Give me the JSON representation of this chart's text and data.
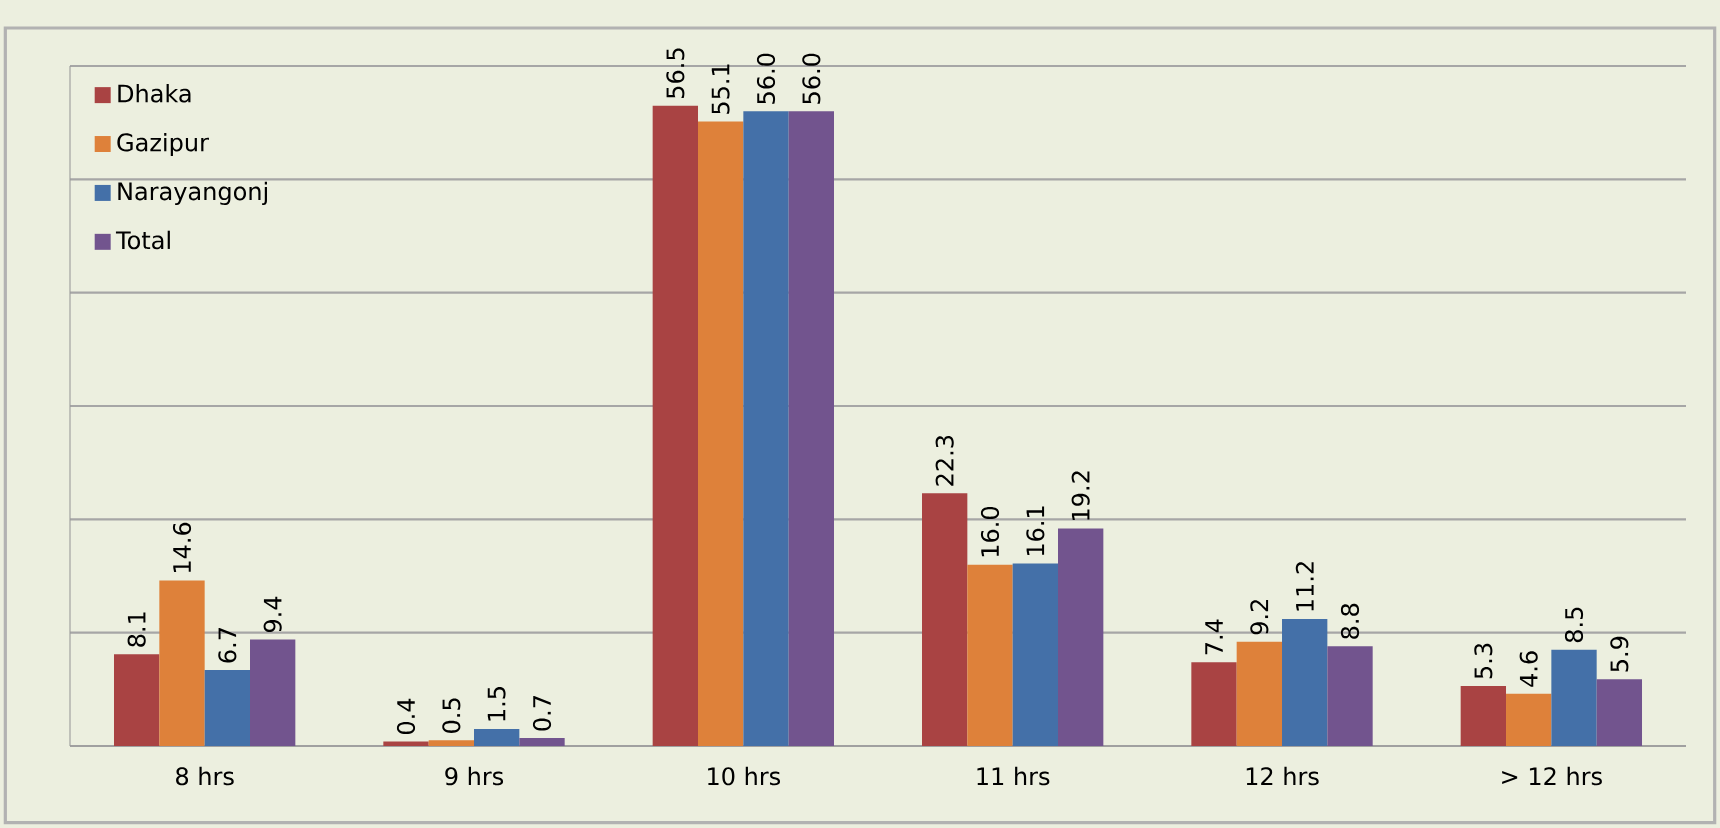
{
  "chart_data": {
    "type": "bar",
    "categories": [
      "8 hrs",
      "9 hrs",
      "10 hrs",
      "11 hrs",
      "12 hrs",
      "> 12 hrs"
    ],
    "series": [
      {
        "name": "Dhaka",
        "color": "#a94343",
        "values": [
          8.1,
          0.4,
          56.5,
          22.3,
          7.4,
          5.3
        ],
        "value_labels": [
          "8.1",
          "0.4",
          "56.5",
          "22.3",
          "7.4",
          "5.3"
        ]
      },
      {
        "name": "Gazipur",
        "color": "#de813a",
        "values": [
          14.6,
          0.5,
          55.1,
          16.0,
          9.2,
          4.6
        ],
        "value_labels": [
          "14.6",
          "0.5",
          "55.1",
          "16.0",
          "9.2",
          "4.6"
        ]
      },
      {
        "name": "Narayangonj",
        "color": "#4470a8",
        "values": [
          6.7,
          1.5,
          56.0,
          16.1,
          11.2,
          8.5
        ],
        "value_labels": [
          "6.7",
          "1.5",
          "56.0",
          "16.1",
          "11.2",
          "8.5"
        ]
      },
      {
        "name": "Total",
        "color": "#72548e",
        "values": [
          9.4,
          0.7,
          56.0,
          19.2,
          8.8,
          5.9
        ],
        "value_labels": [
          "9.4",
          "0.7",
          "56.0",
          "19.2",
          "8.8",
          "5.9"
        ]
      }
    ],
    "ylim": [
      0,
      60
    ],
    "yticks": [
      {
        "value": 0,
        "label": null
      },
      {
        "value": 10,
        "label": null
      },
      {
        "value": 20,
        "label": null
      },
      {
        "value": 30,
        "label": null
      },
      {
        "value": 40,
        "label": null
      },
      {
        "value": 50,
        "label": null
      },
      {
        "value": 60,
        "label": null
      }
    ],
    "grid": "y",
    "legend": "top left",
    "tick_labels": "x"
  }
}
